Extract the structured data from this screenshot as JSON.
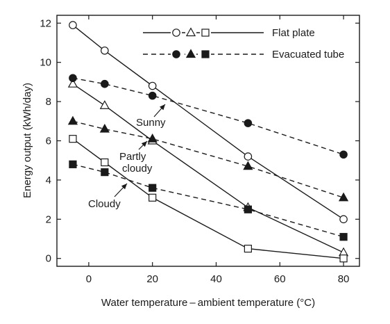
{
  "chart_data": {
    "type": "line",
    "xlabel": "Water temperature – ambient temperature (°C)",
    "ylabel": "Energy output  (kWh/day)",
    "xlim": [
      -10,
      85
    ],
    "ylim": [
      -0.4,
      12.4
    ],
    "xticks": [
      0,
      20,
      40,
      60,
      80
    ],
    "yticks": [
      0,
      2,
      4,
      6,
      8,
      10,
      12
    ],
    "grid": false,
    "legend_position": "top-right",
    "legend": [
      {
        "label": "Flat plate",
        "style": "solid",
        "markers": [
          "open-circle",
          "open-triangle",
          "open-square"
        ]
      },
      {
        "label": "Evacuated tube",
        "style": "dashed",
        "markers": [
          "filled-circle",
          "filled-triangle",
          "filled-square"
        ]
      }
    ],
    "annotations": [
      {
        "text": "Sunny"
      },
      {
        "text": "Partly"
      },
      {
        "text": "cloudy"
      },
      {
        "text": "Cloudy"
      }
    ],
    "series": [
      {
        "collector": "flat plate",
        "condition": "sunny",
        "marker": "open-circle",
        "style": "solid",
        "x": [
          -5,
          5,
          20,
          50,
          80
        ],
        "y": [
          11.9,
          10.6,
          8.8,
          5.2,
          2.0
        ]
      },
      {
        "collector": "flat plate",
        "condition": "partly cloudy",
        "marker": "open-triangle",
        "style": "solid",
        "x": [
          -5,
          5,
          20,
          50,
          80
        ],
        "y": [
          8.9,
          7.8,
          6.0,
          2.6,
          0.3
        ]
      },
      {
        "collector": "flat plate",
        "condition": "cloudy",
        "marker": "open-square",
        "style": "solid",
        "x": [
          -5,
          5,
          20,
          50,
          80
        ],
        "y": [
          6.1,
          4.9,
          3.1,
          0.5,
          0.0
        ]
      },
      {
        "collector": "evacuated tube",
        "condition": "sunny",
        "marker": "filled-circle",
        "style": "dashed",
        "x": [
          -5,
          5,
          20,
          50,
          80
        ],
        "y": [
          9.2,
          8.9,
          8.3,
          6.9,
          5.3
        ]
      },
      {
        "collector": "evacuated tube",
        "condition": "partly cloudy",
        "marker": "filled-triangle",
        "style": "dashed",
        "x": [
          -5,
          5,
          20,
          50,
          80
        ],
        "y": [
          7.0,
          6.6,
          6.1,
          4.7,
          3.1
        ]
      },
      {
        "collector": "evacuated tube",
        "condition": "cloudy",
        "marker": "filled-square",
        "style": "dashed",
        "x": [
          -5,
          5,
          20,
          50,
          80
        ],
        "y": [
          4.8,
          4.4,
          3.6,
          2.5,
          1.1
        ]
      }
    ]
  }
}
